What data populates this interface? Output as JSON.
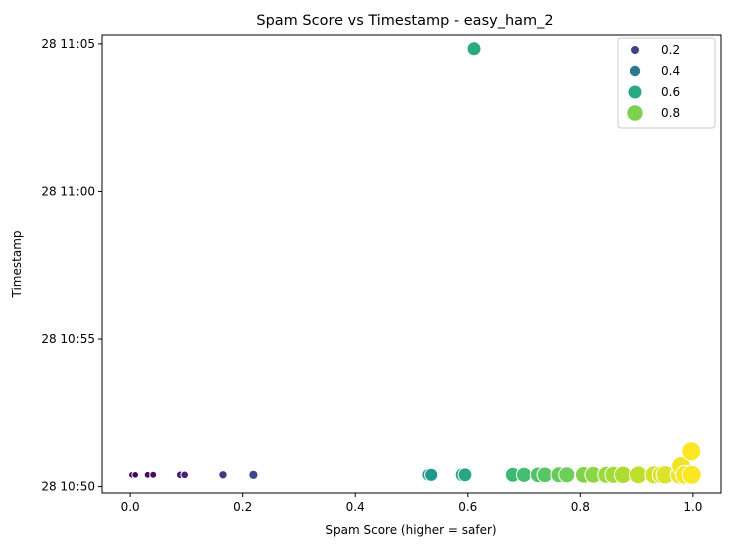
{
  "chart_data": {
    "type": "scatter",
    "title": "Spam Score vs Timestamp - easy_ham_2",
    "xlabel": "Spam Score (higher = safer)",
    "ylabel": "Timestamp",
    "xlim": [
      -0.05,
      1.05
    ],
    "ylim": [
      "28 10:49:47",
      "28 11:05:18"
    ],
    "x_ticks": [
      {
        "value": 0.0,
        "label": "0.0"
      },
      {
        "value": 0.2,
        "label": "0.2"
      },
      {
        "value": 0.4,
        "label": "0.4"
      },
      {
        "value": 0.6,
        "label": "0.6"
      },
      {
        "value": 0.8,
        "label": "0.8"
      },
      {
        "value": 1.0,
        "label": "1.0"
      }
    ],
    "y_ticks": [
      {
        "value": "28 10:50:00",
        "label": "28 10:50"
      },
      {
        "value": "28 10:55:00",
        "label": "28 10:55"
      },
      {
        "value": "28 11:00:00",
        "label": "28 11:00"
      },
      {
        "value": "28 11:05:00",
        "label": "28 11:05"
      }
    ],
    "grid": false,
    "legend": {
      "placement": "top-right",
      "entries": [
        {
          "label": "0.2",
          "value": 0.2
        },
        {
          "label": "0.4",
          "value": 0.4
        },
        {
          "label": "0.6",
          "value": 0.6
        },
        {
          "label": "0.8",
          "value": 0.8
        }
      ]
    },
    "color_scale": "viridis",
    "points": [
      {
        "x": 0.003,
        "y": "28 10:50:24"
      },
      {
        "x": 0.009,
        "y": "28 10:50:24"
      },
      {
        "x": 0.031,
        "y": "28 10:50:24"
      },
      {
        "x": 0.041,
        "y": "28 10:50:24"
      },
      {
        "x": 0.089,
        "y": "28 10:50:24"
      },
      {
        "x": 0.097,
        "y": "28 10:50:24"
      },
      {
        "x": 0.165,
        "y": "28 10:50:24"
      },
      {
        "x": 0.219,
        "y": "28 10:50:24"
      },
      {
        "x": 0.53,
        "y": "28 10:50:24"
      },
      {
        "x": 0.535,
        "y": "28 10:50:24"
      },
      {
        "x": 0.59,
        "y": "28 10:50:24"
      },
      {
        "x": 0.595,
        "y": "28 10:50:24"
      },
      {
        "x": 0.611,
        "y": "28 11:04:50"
      },
      {
        "x": 0.68,
        "y": "28 10:50:24"
      },
      {
        "x": 0.7,
        "y": "28 10:50:24"
      },
      {
        "x": 0.725,
        "y": "28 10:50:24"
      },
      {
        "x": 0.737,
        "y": "28 10:50:24"
      },
      {
        "x": 0.762,
        "y": "28 10:50:24"
      },
      {
        "x": 0.776,
        "y": "28 10:50:24"
      },
      {
        "x": 0.806,
        "y": "28 10:50:24"
      },
      {
        "x": 0.823,
        "y": "28 10:50:24"
      },
      {
        "x": 0.846,
        "y": "28 10:50:24"
      },
      {
        "x": 0.859,
        "y": "28 10:50:24"
      },
      {
        "x": 0.876,
        "y": "28 10:50:24"
      },
      {
        "x": 0.903,
        "y": "28 10:50:24"
      },
      {
        "x": 0.931,
        "y": "28 10:50:24"
      },
      {
        "x": 0.944,
        "y": "28 10:50:24"
      },
      {
        "x": 0.951,
        "y": "28 10:50:24"
      },
      {
        "x": 0.976,
        "y": "28 10:50:24"
      },
      {
        "x": 0.979,
        "y": "28 10:50:42"
      },
      {
        "x": 0.986,
        "y": "28 10:50:24"
      },
      {
        "x": 0.997,
        "y": "28 10:51:12"
      },
      {
        "x": 0.998,
        "y": "28 10:50:24"
      }
    ]
  }
}
